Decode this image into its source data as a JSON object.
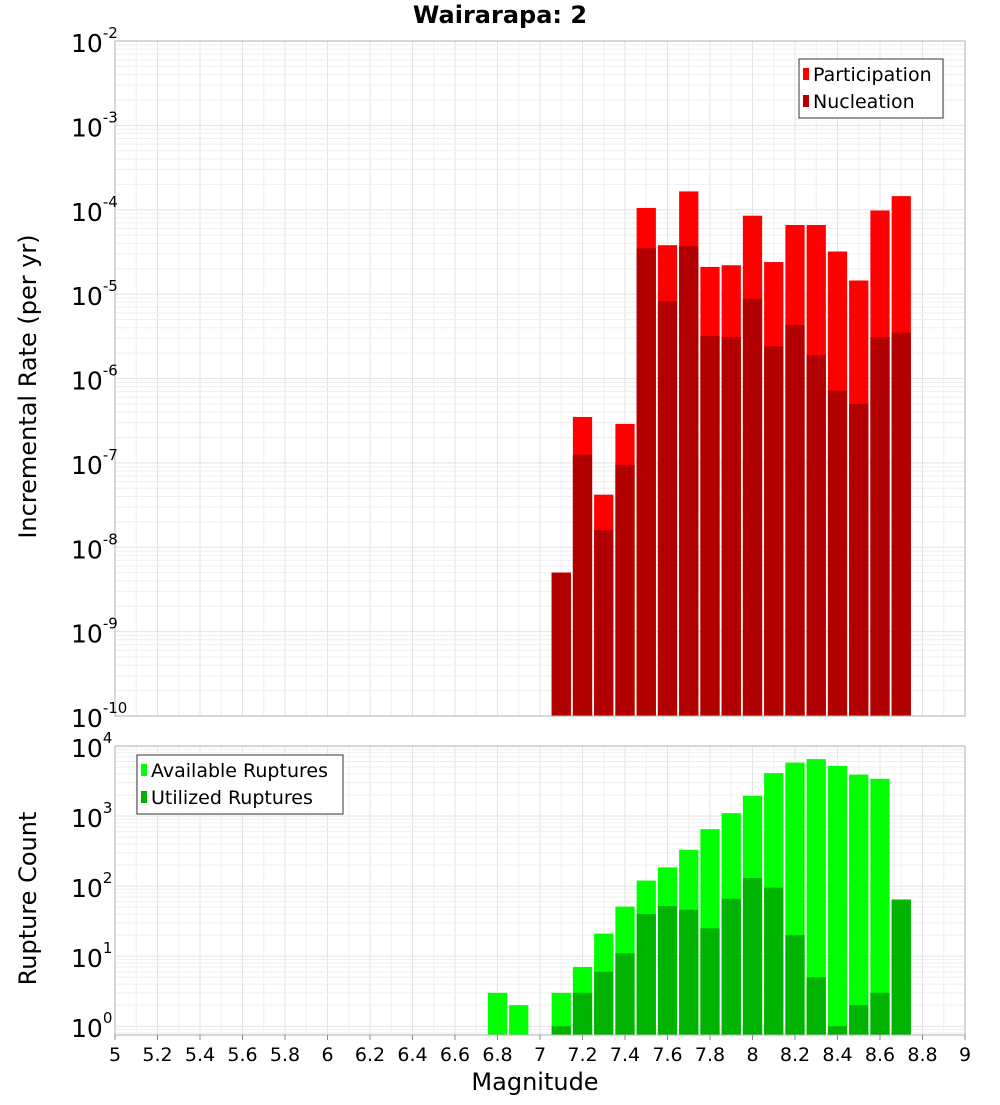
{
  "chart_data": [
    {
      "type": "bar",
      "title": "Wairarapa: 2",
      "xlabel": "",
      "ylabel": "Incremental Rate (per yr)",
      "yscale": "log",
      "ylim": [
        1e-10,
        0.01
      ],
      "xlim": [
        5,
        9
      ],
      "bin_width": 0.1,
      "legend_position": "top-right",
      "grid": true,
      "x": [
        7.1,
        7.2,
        7.3,
        7.4,
        7.5,
        7.6,
        7.7,
        7.8,
        7.9,
        8.0,
        8.1,
        8.2,
        8.3,
        8.4,
        8.5,
        8.6,
        8.7
      ],
      "series": [
        {
          "name": "Participation",
          "color": "#ff0000",
          "values": [
            5e-09,
            3.5e-07,
            4.2e-08,
            2.9e-07,
            0.000105,
            3.8e-05,
            0.000165,
            2.1e-05,
            2.2e-05,
            8.5e-05,
            2.4e-05,
            6.6e-05,
            6.6e-05,
            3.2e-05,
            1.45e-05,
            9.8e-05,
            0.000145
          ]
        },
        {
          "name": "Nucleation",
          "color": "#b20000",
          "values": [
            5e-09,
            1.25e-07,
            1.6e-08,
            9.5e-08,
            3.5e-05,
            8.2e-06,
            3.7e-05,
            3.2e-06,
            3.1e-06,
            8.8e-06,
            2.4e-06,
            4.3e-06,
            1.9e-06,
            7.2e-07,
            5e-07,
            3.1e-06,
            3.5e-06
          ]
        }
      ]
    },
    {
      "type": "bar",
      "title": "",
      "xlabel": "Magnitude",
      "ylabel": "Rupture Count",
      "yscale": "log",
      "ylim": [
        0.75,
        10000
      ],
      "xlim": [
        5,
        9
      ],
      "bin_width": 0.1,
      "legend_position": "top-left",
      "grid": true,
      "xticks": [
        "5",
        "5.2",
        "5.4",
        "5.6",
        "5.8",
        "6",
        "6.2",
        "6.4",
        "6.6",
        "6.8",
        "7",
        "7.2",
        "7.4",
        "7.6",
        "7.8",
        "8",
        "8.2",
        "8.4",
        "8.6",
        "8.8",
        "9"
      ],
      "x": [
        6.8,
        6.9,
        7.1,
        7.2,
        7.3,
        7.4,
        7.5,
        7.6,
        7.7,
        7.8,
        7.9,
        8.0,
        8.1,
        8.2,
        8.3,
        8.4,
        8.5,
        8.6,
        8.7
      ],
      "series": [
        {
          "name": "Available Ruptures",
          "color": "#00ff00",
          "values": [
            3,
            2,
            3,
            7,
            21,
            51,
            120,
            185,
            330,
            650,
            1100,
            1950,
            4100,
            5800,
            6500,
            5200,
            3900,
            3400,
            65
          ]
        },
        {
          "name": "Utilized Ruptures",
          "color": "#00b300",
          "values": [
            0,
            0,
            1,
            3,
            6,
            11,
            40,
            52,
            46,
            25,
            66,
            130,
            95,
            20,
            5,
            1,
            2,
            3,
            63
          ]
        }
      ]
    }
  ]
}
